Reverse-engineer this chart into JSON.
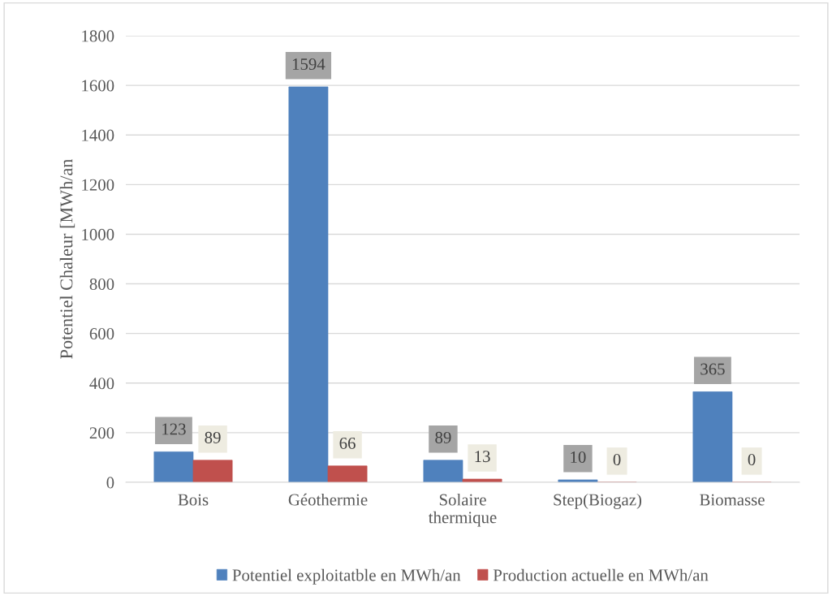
{
  "chart_data": {
    "type": "bar",
    "ylabel": "Potentiel Chaleur [MWh/an",
    "categories": [
      "Bois",
      "Géothermie",
      "Solaire\nthermique",
      "Step(Biogaz)",
      "Biomasse"
    ],
    "series": [
      {
        "name": "Potentiel exploitatble en MWh/an",
        "color": "#4f81bd",
        "values": [
          123,
          1594,
          89,
          10,
          365
        ]
      },
      {
        "name": "Production actuelle en MWh/an",
        "color": "#c0504d",
        "values": [
          89,
          66,
          13,
          0,
          0
        ]
      }
    ],
    "ylim": [
      0,
      1800
    ],
    "yticks": [
      0,
      200,
      400,
      600,
      800,
      1000,
      1200,
      1400,
      1600,
      1800
    ],
    "grid": "y",
    "legend": "bottom",
    "data_labels": true
  }
}
